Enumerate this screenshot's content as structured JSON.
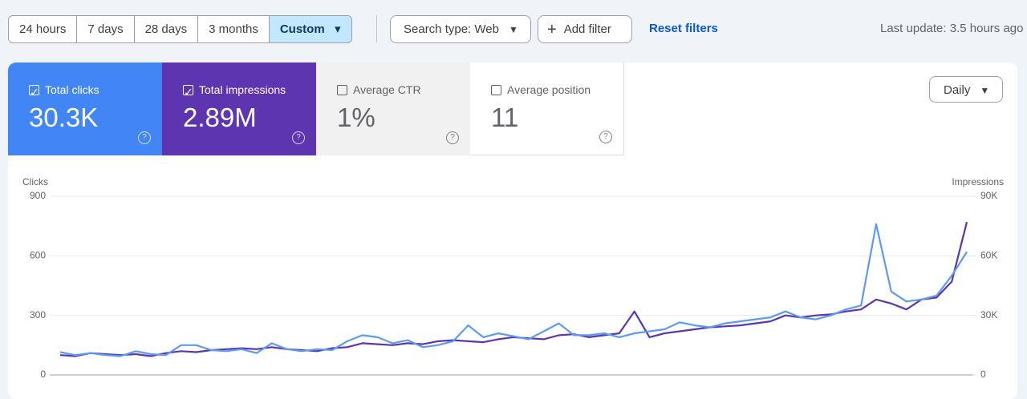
{
  "toolbar": {
    "date_ranges": [
      "24 hours",
      "7 days",
      "28 days",
      "3 months",
      "Custom"
    ],
    "search_type": "Search type: Web",
    "add_filter": "Add filter",
    "reset": "Reset filters",
    "last_update": "Last update: 3.5 hours ago"
  },
  "metrics": [
    {
      "label": "Total clicks",
      "value": "30.3K"
    },
    {
      "label": "Total impressions",
      "value": "2.89M"
    },
    {
      "label": "Average CTR",
      "value": "1%"
    },
    {
      "label": "Average position",
      "value": "11"
    }
  ],
  "granularity": "Daily",
  "chart_data": {
    "type": "line",
    "series": [
      {
        "name": "Clicks",
        "color": "#5b9cf2",
        "values": [
          115,
          100,
          110,
          100,
          95,
          120,
          105,
          100,
          150,
          150,
          125,
          120,
          130,
          110,
          160,
          130,
          120,
          130,
          125,
          170,
          200,
          190,
          160,
          175,
          140,
          150,
          170,
          250,
          190,
          210,
          195,
          180,
          220,
          260,
          200,
          200,
          210,
          190,
          210,
          220,
          230,
          265,
          250,
          240,
          260,
          270,
          280,
          290,
          320,
          290,
          280,
          300,
          330,
          350,
          760,
          420,
          370,
          380,
          400,
          500,
          620
        ]
      },
      {
        "name": "Impressions",
        "color": "#5e35b1",
        "axis": "y2",
        "values": [
          10000,
          9500,
          11000,
          10500,
          10000,
          10500,
          9500,
          11000,
          12000,
          11500,
          12500,
          13000,
          13500,
          13000,
          14000,
          13000,
          12500,
          12000,
          13500,
          14000,
          16000,
          15500,
          15000,
          16000,
          15500,
          17000,
          17500,
          17000,
          16500,
          18000,
          19000,
          18500,
          18000,
          20000,
          20500,
          19000,
          20000,
          21000,
          32000,
          19000,
          21000,
          22000,
          23000,
          24000,
          24500,
          25000,
          26000,
          27000,
          30000,
          29000,
          30000,
          30500,
          32000,
          33000,
          38000,
          36000,
          33000,
          38000,
          39000,
          47000,
          77000
        ]
      }
    ],
    "ylim": [
      0,
      900
    ],
    "yticks": [
      0,
      300,
      600,
      900
    ],
    "y2lim": [
      0,
      90000
    ],
    "y2ticks": [
      0,
      {
        "value": 30000,
        "label": "30K"
      },
      {
        "value": 60000,
        "label": "60K"
      },
      {
        "value": 90000,
        "label": "90K"
      }
    ],
    "grid": true
  }
}
